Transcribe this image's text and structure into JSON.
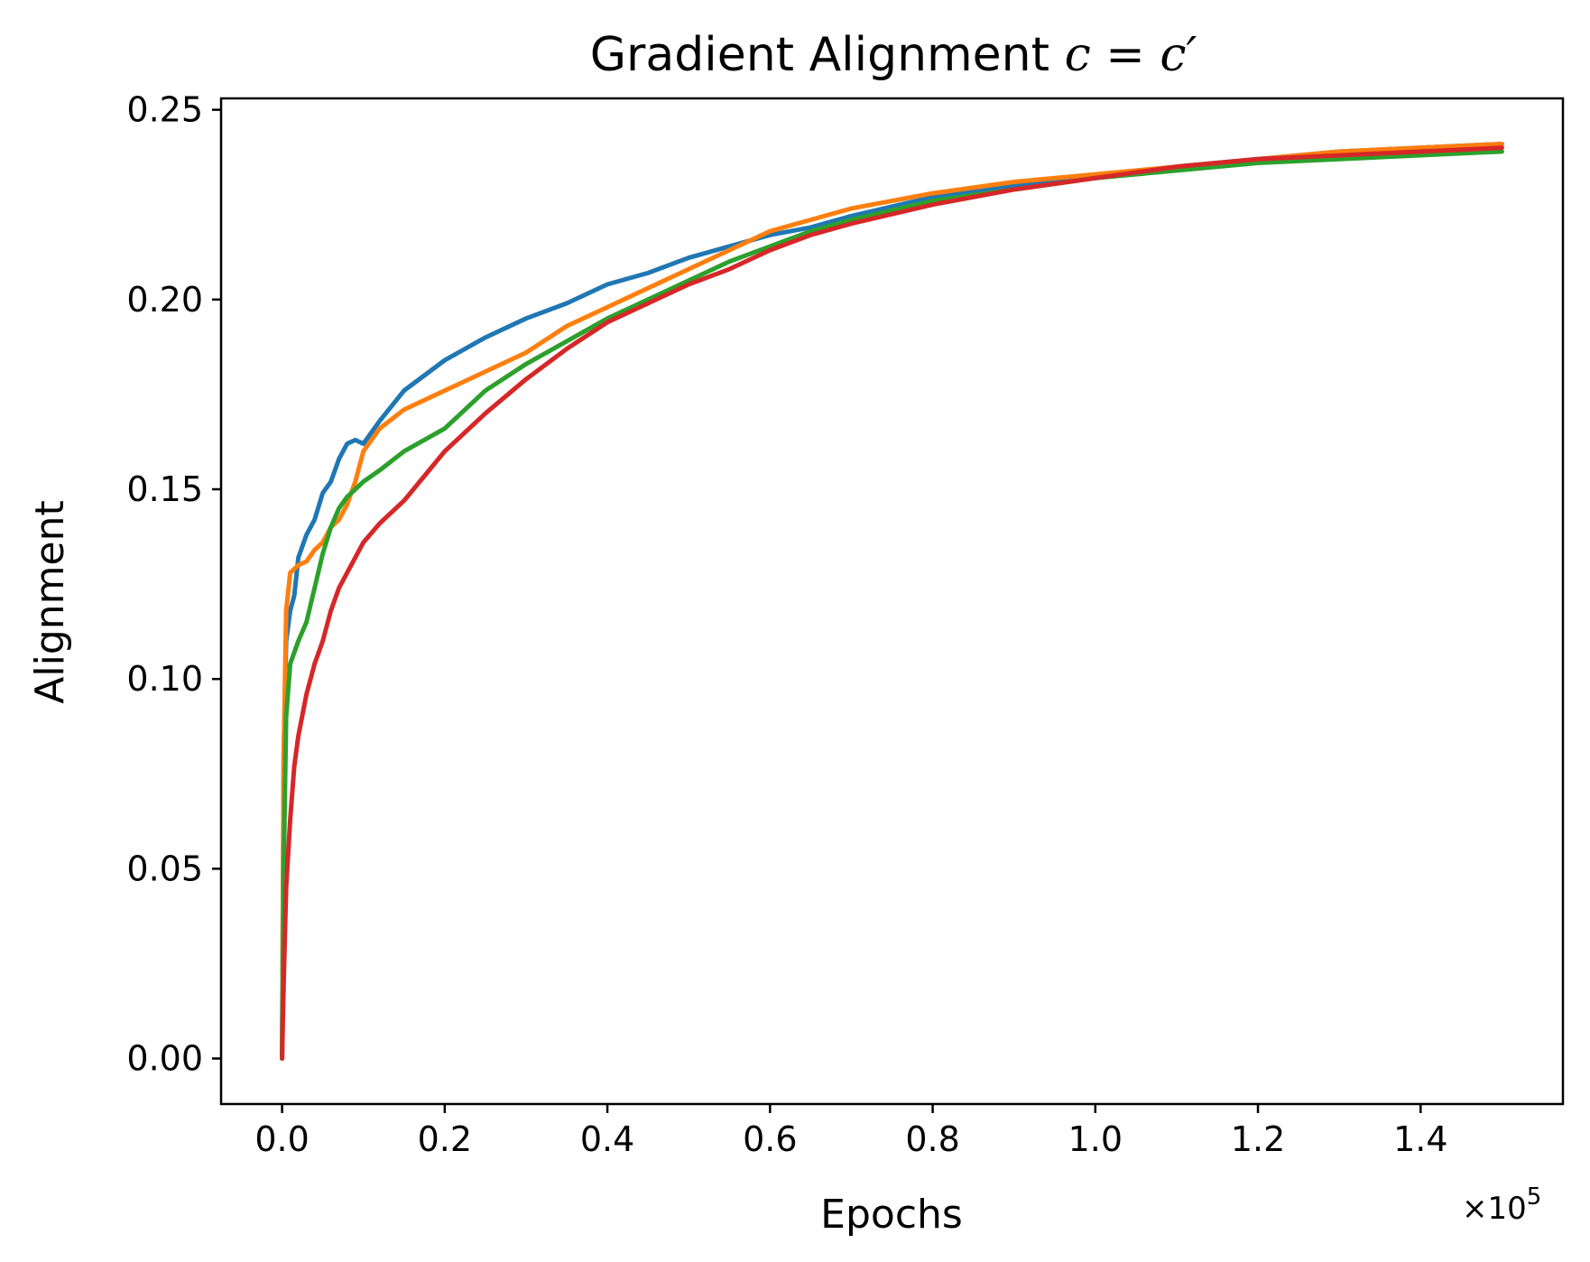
{
  "chart_data": {
    "type": "line",
    "title": {
      "prefix": "Gradient Alignment ",
      "math": "c = c′"
    },
    "xlabel": "Epochs",
    "ylabel": "Alignment",
    "x_offset_label": "×10",
    "x_offset_exp": "5",
    "xlim": [
      -0.075,
      1.575
    ],
    "ylim": [
      -0.012,
      0.253
    ],
    "xticks": [
      0.0,
      0.2,
      0.4,
      0.6,
      0.8,
      1.0,
      1.2,
      1.4
    ],
    "xtick_labels": [
      "0.0",
      "0.2",
      "0.4",
      "0.6",
      "0.8",
      "1.0",
      "1.2",
      "1.4"
    ],
    "yticks": [
      0.0,
      0.05,
      0.1,
      0.15,
      0.2,
      0.25
    ],
    "ytick_labels": [
      "0.00",
      "0.05",
      "0.10",
      "0.15",
      "0.20",
      "0.25"
    ],
    "grid": false,
    "series": [
      {
        "color": "#1f77b4",
        "x": [
          0.0,
          0.002,
          0.005,
          0.01,
          0.015,
          0.02,
          0.03,
          0.04,
          0.05,
          0.06,
          0.07,
          0.08,
          0.09,
          0.1,
          0.12,
          0.15,
          0.2,
          0.25,
          0.3,
          0.35,
          0.4,
          0.45,
          0.5,
          0.55,
          0.6,
          0.65,
          0.7,
          0.8,
          0.9,
          1.0,
          1.1,
          1.2,
          1.3,
          1.4,
          1.5
        ],
        "y": [
          0.0,
          0.08,
          0.11,
          0.118,
          0.122,
          0.132,
          0.138,
          0.142,
          0.149,
          0.152,
          0.158,
          0.162,
          0.163,
          0.162,
          0.168,
          0.176,
          0.184,
          0.19,
          0.195,
          0.199,
          0.204,
          0.207,
          0.211,
          0.214,
          0.217,
          0.219,
          0.222,
          0.227,
          0.23,
          0.232,
          0.235,
          0.237,
          0.239,
          0.24,
          0.241
        ]
      },
      {
        "color": "#ff7f0e",
        "x": [
          0.0,
          0.002,
          0.005,
          0.01,
          0.02,
          0.03,
          0.04,
          0.05,
          0.06,
          0.07,
          0.08,
          0.09,
          0.1,
          0.12,
          0.15,
          0.2,
          0.25,
          0.3,
          0.35,
          0.4,
          0.45,
          0.5,
          0.55,
          0.6,
          0.65,
          0.7,
          0.8,
          0.9,
          1.0,
          1.1,
          1.2,
          1.3,
          1.4,
          1.5
        ],
        "y": [
          0.0,
          0.08,
          0.118,
          0.128,
          0.13,
          0.131,
          0.134,
          0.136,
          0.14,
          0.142,
          0.146,
          0.152,
          0.16,
          0.166,
          0.171,
          0.176,
          0.181,
          0.186,
          0.193,
          0.198,
          0.203,
          0.208,
          0.213,
          0.218,
          0.221,
          0.224,
          0.228,
          0.231,
          0.233,
          0.235,
          0.237,
          0.239,
          0.24,
          0.241
        ]
      },
      {
        "color": "#2ca02c",
        "x": [
          0.0,
          0.002,
          0.005,
          0.01,
          0.02,
          0.03,
          0.04,
          0.05,
          0.06,
          0.07,
          0.08,
          0.09,
          0.1,
          0.12,
          0.15,
          0.2,
          0.25,
          0.3,
          0.35,
          0.4,
          0.45,
          0.5,
          0.55,
          0.6,
          0.65,
          0.7,
          0.8,
          0.9,
          1.0,
          1.1,
          1.2,
          1.3,
          1.4,
          1.5
        ],
        "y": [
          0.0,
          0.05,
          0.09,
          0.104,
          0.11,
          0.115,
          0.124,
          0.133,
          0.14,
          0.145,
          0.148,
          0.15,
          0.152,
          0.155,
          0.16,
          0.166,
          0.176,
          0.183,
          0.189,
          0.195,
          0.2,
          0.205,
          0.21,
          0.214,
          0.218,
          0.221,
          0.226,
          0.229,
          0.232,
          0.234,
          0.236,
          0.237,
          0.238,
          0.239
        ]
      },
      {
        "color": "#d62728",
        "x": [
          0.0,
          0.002,
          0.005,
          0.01,
          0.015,
          0.02,
          0.03,
          0.04,
          0.05,
          0.06,
          0.07,
          0.08,
          0.09,
          0.1,
          0.12,
          0.15,
          0.2,
          0.25,
          0.3,
          0.35,
          0.4,
          0.45,
          0.5,
          0.55,
          0.6,
          0.65,
          0.7,
          0.8,
          0.9,
          1.0,
          1.1,
          1.2,
          1.3,
          1.4,
          1.5
        ],
        "y": [
          0.0,
          0.02,
          0.045,
          0.063,
          0.077,
          0.085,
          0.096,
          0.104,
          0.11,
          0.118,
          0.124,
          0.128,
          0.132,
          0.136,
          0.141,
          0.147,
          0.16,
          0.17,
          0.179,
          0.187,
          0.194,
          0.199,
          0.204,
          0.208,
          0.213,
          0.217,
          0.22,
          0.225,
          0.229,
          0.232,
          0.235,
          0.237,
          0.238,
          0.239,
          0.24
        ]
      }
    ]
  }
}
